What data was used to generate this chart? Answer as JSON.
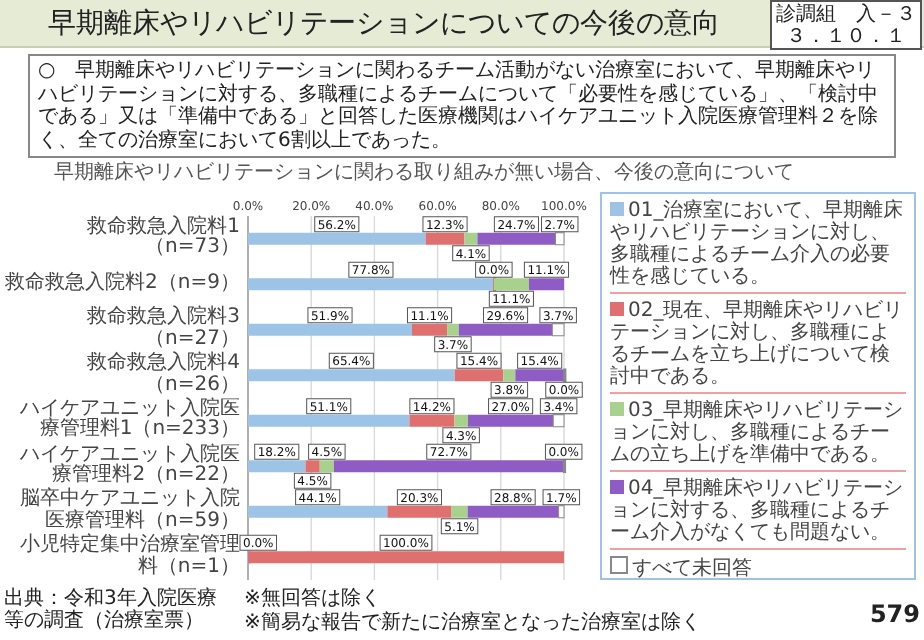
{
  "chart_data": {
    "type": "bar",
    "orientation": "horizontal",
    "stacked": true,
    "title": "早期離床やリハビリテーションについての今後の意向",
    "subtitle": "○　早期離床やリハビリテーションに関わるチーム活動がない治療室において、早期離床やリハビリテーションに対する、多職種によるチームについて「必要性を感じている」、「検討中である」又は「準備中である」と回答した医療機関はハイケアユニット入院医療管理料２を除く、全ての治療室において6割以上であった。",
    "annotations": [
      "診調組　入－３",
      "３．１０．１",
      "早期離床やリハビリテーションに関わる取り組みが無い場合、今後の意向について",
      "※無回答は除く",
      "※簡易な報告で新たに治療室となった治療室は除く",
      "出典：令和3年入院医療等の調査（治療室票）",
      "579"
    ],
    "categories": [
      "救命救急入院料1（n=73）",
      "救命救急入院料2（n=9）",
      "救命救急入院料3（n=27）",
      "救命救急入院料4（n=26）",
      "ハイケアユニット入院医療管理料1（n=233）",
      "ハイケアユニット入院医療管理料2（n=22）",
      "脳卒中ケアユニット入院医療管理料（n=59）",
      "小児特定集中治療室管理料（n=1）"
    ],
    "series": [
      {
        "name": "01_治療室において、早期離床やリハビリテーションに対し、多職種によるチーム介入の必要性を感じている。",
        "color": "#9dc3e6",
        "values": [
          56.2,
          77.8,
          51.9,
          65.4,
          51.1,
          18.2,
          44.1,
          0.0
        ],
        "value_labels": [
          "56.2%",
          "77.8%",
          "51.9%",
          "65.4%",
          "51.1%",
          "18.2%",
          "44.1%",
          "0.0%"
        ]
      },
      {
        "name": "02_現在、早期離床やリハビリテーションに対し、多職種によるチームを立ち上げについて検討中である。",
        "color": "#e07070",
        "values": [
          12.3,
          0.0,
          11.1,
          15.4,
          14.2,
          4.5,
          20.3,
          100.0
        ],
        "value_labels": [
          "12.3%",
          "0.0%",
          "11.1%",
          "15.4%",
          "14.2%",
          "4.5%",
          "20.3%",
          "100.0%"
        ]
      },
      {
        "name": "03_早期離床やリハビリテーションに対し、多職種によるチームの立ち上げを準備中である。",
        "color": "#a9d18e",
        "values": [
          4.1,
          11.1,
          3.7,
          3.8,
          4.3,
          4.5,
          5.1,
          null
        ],
        "value_labels": [
          "4.1%",
          "11.1%",
          "3.7%",
          "3.8%",
          "4.3%",
          "4.5%",
          "5.1%",
          null
        ]
      },
      {
        "name": "04_早期離床やリハビリテーションに対する、多職種によるチーム介入がなくても問題ない。",
        "color": "#8e5cc4",
        "values": [
          24.7,
          11.1,
          29.6,
          15.4,
          27.0,
          72.7,
          28.8,
          null
        ],
        "value_labels": [
          "24.7%",
          "11.1%",
          "29.6%",
          "15.4%",
          "27.0%",
          "72.7%",
          "28.8%",
          null
        ]
      },
      {
        "name": "すべて未回答",
        "color": "#ffffff",
        "values": [
          2.7,
          null,
          3.7,
          0.0,
          3.4,
          0.0,
          1.7,
          null
        ],
        "value_labels": [
          "2.7%",
          null,
          "3.7%",
          "0.0%",
          "3.4%",
          "0.0%",
          "1.7%",
          null
        ]
      }
    ],
    "xlim": [
      0,
      100
    ],
    "xticks": [
      {
        "value": 0,
        "label": "0.0%"
      },
      {
        "value": 20,
        "label": "20.0%"
      },
      {
        "value": 40,
        "label": "40.0%"
      },
      {
        "value": 60,
        "label": "60.0%"
      },
      {
        "value": 80,
        "label": "80.0%"
      },
      {
        "value": 100,
        "label": "100.0%"
      }
    ],
    "grid": "x",
    "legend": "right"
  }
}
